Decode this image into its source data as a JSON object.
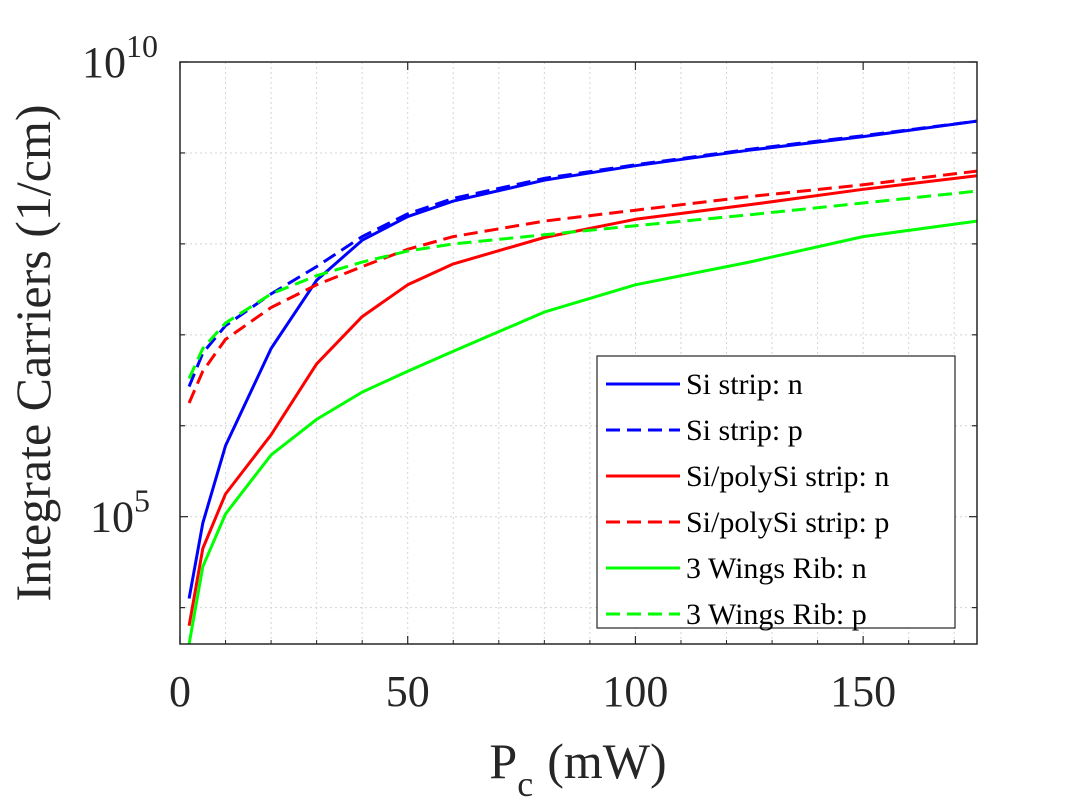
{
  "chart_data": {
    "type": "line",
    "title": "",
    "xlabel": "P",
    "xlabel_subscript": "c",
    "xlabel_unit": "(mW)",
    "ylabel": "Integrate Carriers (1/cm)",
    "xlim": [
      0,
      175
    ],
    "ylim_exp": [
      3.6,
      10
    ],
    "yscale": "log",
    "xticks": [
      0,
      50,
      100,
      150
    ],
    "xtick_labels": [
      "0",
      "50",
      "100",
      "150"
    ],
    "yticks_major": [
      {
        "base": "10",
        "exp": "10",
        "value_exp": 10
      },
      {
        "base": "10",
        "exp": "5",
        "value_exp": 5
      }
    ],
    "grid": true,
    "legend_position": "bottom-right",
    "series": [
      {
        "name": "Si strip: n",
        "color": "#0000ff",
        "dash": "solid",
        "x": [
          2,
          5,
          10,
          20,
          30,
          40,
          50,
          60,
          80,
          100,
          125,
          150,
          175
        ],
        "log10_y": [
          4.1,
          4.93,
          5.78,
          6.85,
          7.6,
          8.04,
          8.3,
          8.47,
          8.7,
          8.86,
          9.03,
          9.18,
          9.35
        ]
      },
      {
        "name": "Si strip: p",
        "color": "#0000ff",
        "dash": "dashed",
        "x": [
          2,
          5,
          10,
          20,
          30,
          40,
          50,
          60,
          80,
          100,
          125,
          150,
          175
        ],
        "log10_y": [
          6.43,
          6.8,
          7.1,
          7.45,
          7.75,
          8.08,
          8.33,
          8.5,
          8.72,
          8.87,
          9.04,
          9.19,
          9.35
        ]
      },
      {
        "name": "Si/polySi strip: n",
        "color": "#ff0000",
        "dash": "solid",
        "x": [
          2,
          5,
          10,
          20,
          30,
          40,
          50,
          60,
          80,
          100,
          125,
          150,
          175
        ],
        "log10_y": [
          3.8,
          4.65,
          5.25,
          5.9,
          6.68,
          7.2,
          7.55,
          7.78,
          8.07,
          8.27,
          8.43,
          8.6,
          8.75
        ]
      },
      {
        "name": "Si/polySi strip: p",
        "color": "#ff0000",
        "dash": "dashed",
        "x": [
          2,
          5,
          10,
          20,
          30,
          40,
          50,
          60,
          80,
          100,
          125,
          150,
          175
        ],
        "log10_y": [
          6.25,
          6.6,
          6.95,
          7.3,
          7.55,
          7.75,
          7.94,
          8.08,
          8.25,
          8.37,
          8.52,
          8.65,
          8.8
        ]
      },
      {
        "name": "3 Wings Rib: n",
        "color": "#00ff00",
        "dash": "solid",
        "x": [
          2,
          5,
          10,
          20,
          30,
          40,
          50,
          60,
          80,
          100,
          125,
          150,
          175
        ],
        "log10_y": [
          3.6,
          4.45,
          5.03,
          5.68,
          6.07,
          6.37,
          6.6,
          6.82,
          7.25,
          7.55,
          7.8,
          8.08,
          8.25
        ]
      },
      {
        "name": "3 Wings Rib: p",
        "color": "#00ff00",
        "dash": "dashed",
        "x": [
          2,
          5,
          10,
          20,
          30,
          40,
          50,
          60,
          80,
          100,
          125,
          150,
          175
        ],
        "log10_y": [
          6.52,
          6.85,
          7.13,
          7.45,
          7.65,
          7.8,
          7.92,
          8.0,
          8.1,
          8.2,
          8.32,
          8.45,
          8.58
        ]
      }
    ]
  }
}
